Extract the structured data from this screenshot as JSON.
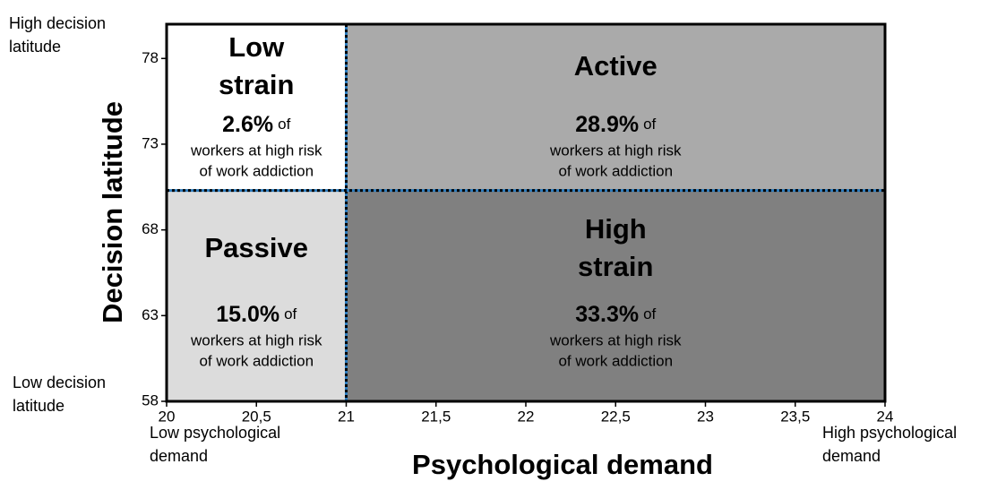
{
  "chart_data": {
    "type": "quadrant",
    "xlabel": "Psychological demand",
    "ylabel": "Decision latitude",
    "xlim": [
      20,
      24
    ],
    "ylim": [
      58,
      80
    ],
    "xticks": [
      20,
      {
        "value": 20.5,
        "label": "20,5"
      },
      21,
      {
        "value": 21.5,
        "label": "21,5"
      },
      22,
      {
        "value": 22.5,
        "label": "22,5"
      },
      23,
      {
        "value": 23.5,
        "label": "23,5"
      },
      24
    ],
    "yticks": [
      58,
      63,
      68,
      73,
      78
    ],
    "x_split": 21,
    "y_split": 70.3,
    "corner_labels": {
      "y_high": [
        "High decision",
        "latitude"
      ],
      "y_low": [
        "Low decision",
        "latitude"
      ],
      "x_low": [
        "Low psychological",
        "demand"
      ],
      "x_high": [
        "High psychological",
        "demand"
      ]
    },
    "quadrants": [
      {
        "name": [
          "Low",
          "strain"
        ],
        "value": 2.6,
        "value_label": "2.6%",
        "suffix": "of",
        "description": [
          "workers at high risk",
          "of work addiction"
        ],
        "color": "#ffffff"
      },
      {
        "name": [
          "Active"
        ],
        "value": 28.9,
        "value_label": "28.9%",
        "suffix": "of",
        "description": [
          "workers at high risk",
          "of work addiction"
        ],
        "color": "#aaaaaa"
      },
      {
        "name": [
          "Passive"
        ],
        "value": 15.0,
        "value_label": "15.0%",
        "suffix": "of",
        "description": [
          "workers at high risk",
          "of work addiction"
        ],
        "color": "#dcdcdc"
      },
      {
        "name": [
          "High",
          "strain"
        ],
        "value": 33.3,
        "value_label": "33.3%",
        "suffix": "of",
        "description": [
          "workers at high risk",
          "of work addiction"
        ],
        "color": "#808080"
      }
    ]
  }
}
